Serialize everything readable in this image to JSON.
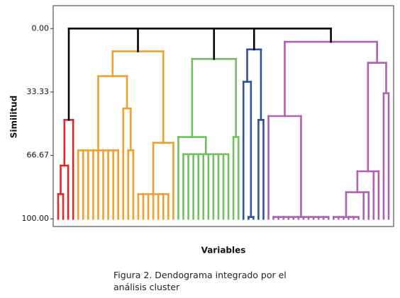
{
  "chart_data": {
    "type": "dendrogram",
    "x_label": "Variables",
    "y_label": "Similitud",
    "caption": "Figura 2. Dendograma integrado por el análisis cluster",
    "ylim": [
      104,
      -12
    ],
    "yticks": [
      {
        "value": 0,
        "label": "0.00"
      },
      {
        "value": 33.33,
        "label": "33.33"
      },
      {
        "value": 66.67,
        "label": "66.67"
      },
      {
        "value": 100,
        "label": "100.00"
      }
    ],
    "leaf_height": 100,
    "tree": {
      "height": 0,
      "color": "#000000",
      "children": [
        {
          "height": 48,
          "color": "#e02828",
          "children": [
            {
              "height": 72,
              "children": [
                {
                  "height": 87,
                  "children": [
                    2
                  ]
                },
                1
              ]
            },
            1
          ]
        },
        {
          "height": 12,
          "color": "#f0a030",
          "children": [
            {
              "height": 25,
              "children": [
                {
                  "height": 64,
                  "children": [
                    9
                  ]
                },
                {
                  "height": 42,
                  "children": [
                    1,
                    {
                      "height": 64,
                      "children": [
                        2
                      ]
                    }
                  ]
                }
              ]
            },
            {
              "height": 60,
              "children": [
                {
                  "height": 87,
                  "children": [
                    7
                  ]
                },
                1
              ]
            }
          ]
        },
        {
          "height": 16,
          "color": "#70c060",
          "children": [
            {
              "height": 57,
              "children": [
                1,
                {
                  "height": 66,
                  "children": [
                    10
                  ]
                }
              ]
            },
            {
              "height": 57,
              "children": [
                2
              ]
            }
          ]
        },
        {
          "height": 11,
          "color": "#3050a0",
          "children": [
            {
              "height": 28,
              "children": [
                1,
                {
                  "height": 99,
                  "children": [
                    2
                  ]
                }
              ]
            },
            {
              "height": 48,
              "children": [
                2
              ]
            }
          ]
        },
        {
          "height": 7,
          "color": "#b060b0",
          "children": [
            {
              "height": 46,
              "children": [
                1,
                {
                  "height": 99,
                  "children": [
                    12
                  ]
                }
              ]
            },
            {
              "height": 18,
              "children": [
                {
                  "height": 75,
                  "children": [
                    {
                      "height": 86,
                      "children": [
                        {
                          "height": 99,
                          "children": [
                            6
                          ]
                        },
                        2
                      ]
                    },
                    2
                  ]
                },
                {
                  "height": 34,
                  "children": [
                    2
                  ]
                }
              ]
            }
          ]
        }
      ]
    }
  }
}
